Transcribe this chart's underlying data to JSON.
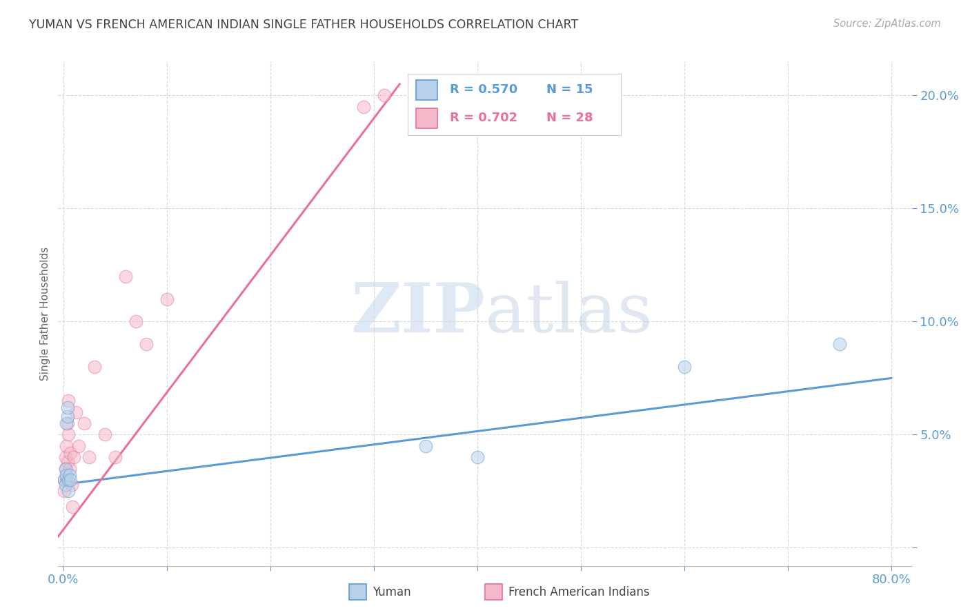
{
  "title": "YUMAN VS FRENCH AMERICAN INDIAN SINGLE FATHER HOUSEHOLDS CORRELATION CHART",
  "source": "Source: ZipAtlas.com",
  "ylabel": "Single Father Households",
  "watermark_zip": "ZIP",
  "watermark_atlas": "atlas",
  "legend_label_yuman": "Yuman",
  "legend_label_fai": "French American Indians",
  "yuman_color": "#b8d0ea",
  "fai_color": "#f5b8c8",
  "yuman_line_color": "#5b9bd5",
  "fai_line_color": "#e8709a",
  "background_color": "#ffffff",
  "grid_color": "#d8d8d8",
  "title_color": "#404040",
  "source_color": "#aaaaaa",
  "ytick_color": "#5b9bd5",
  "xtick_color": "#5b9bd5",
  "yuman_scatter_x": [
    0.001,
    0.002,
    0.002,
    0.003,
    0.003,
    0.004,
    0.004,
    0.005,
    0.005,
    0.006,
    0.007,
    0.4,
    0.6,
    0.75,
    0.35
  ],
  "yuman_scatter_y": [
    0.03,
    0.035,
    0.028,
    0.032,
    0.055,
    0.058,
    0.062,
    0.03,
    0.025,
    0.032,
    0.03,
    0.04,
    0.08,
    0.09,
    0.045
  ],
  "fai_scatter_x": [
    0.001,
    0.001,
    0.002,
    0.002,
    0.003,
    0.003,
    0.004,
    0.004,
    0.005,
    0.005,
    0.006,
    0.007,
    0.008,
    0.009,
    0.01,
    0.012,
    0.015,
    0.02,
    0.025,
    0.03,
    0.04,
    0.05,
    0.06,
    0.07,
    0.08,
    0.1,
    0.29,
    0.31
  ],
  "fai_scatter_y": [
    0.03,
    0.025,
    0.04,
    0.035,
    0.03,
    0.045,
    0.038,
    0.055,
    0.05,
    0.065,
    0.035,
    0.042,
    0.028,
    0.018,
    0.04,
    0.06,
    0.045,
    0.055,
    0.04,
    0.08,
    0.05,
    0.04,
    0.12,
    0.1,
    0.09,
    0.11,
    0.195,
    0.2
  ],
  "xmin": -0.005,
  "xmax": 0.82,
  "ymin": -0.008,
  "ymax": 0.215,
  "yticks": [
    0.0,
    0.05,
    0.1,
    0.15,
    0.2
  ],
  "ytick_labels": [
    "",
    "5.0%",
    "10.0%",
    "15.0%",
    "20.0%"
  ],
  "xtick_positions": [
    0.0,
    0.1,
    0.2,
    0.3,
    0.4,
    0.5,
    0.6,
    0.7,
    0.8
  ],
  "yuman_line_x": [
    0.0,
    0.8
  ],
  "yuman_line_y": [
    0.028,
    0.075
  ],
  "fai_line_x": [
    -0.005,
    0.325
  ],
  "fai_line_y": [
    0.005,
    0.205
  ],
  "marker_size": 180,
  "marker_alpha": 0.55,
  "line_width": 2.2,
  "legend_r1": "R = 0.570",
  "legend_n1": "N = 15",
  "legend_r2": "R = 0.702",
  "legend_n2": "N = 28"
}
